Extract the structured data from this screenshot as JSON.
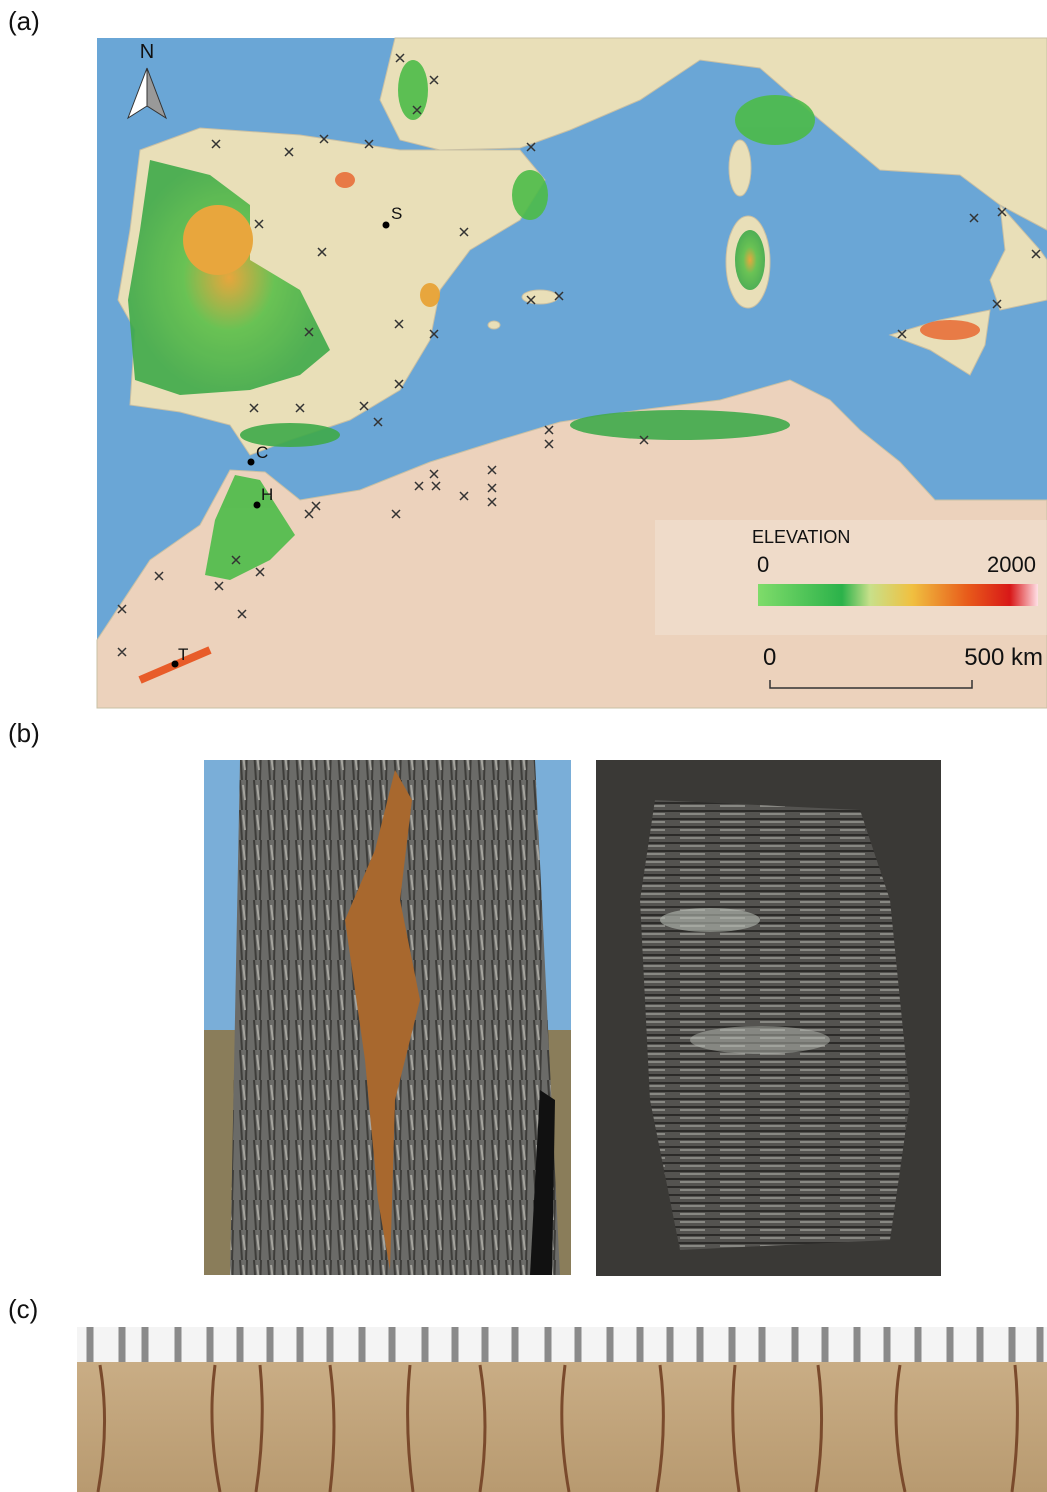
{
  "panels": [
    {
      "label": "(a)",
      "map": {
        "north": "N",
        "sites": [
          "S",
          "C",
          "H",
          "T"
        ],
        "legend": {
          "title": "ELEVATION",
          "min": "0",
          "max": "2000"
        },
        "scale": {
          "start": "0",
          "end": "500 km"
        }
      }
    },
    {
      "label": "(b)"
    },
    {
      "label": "(c)"
    }
  ]
}
